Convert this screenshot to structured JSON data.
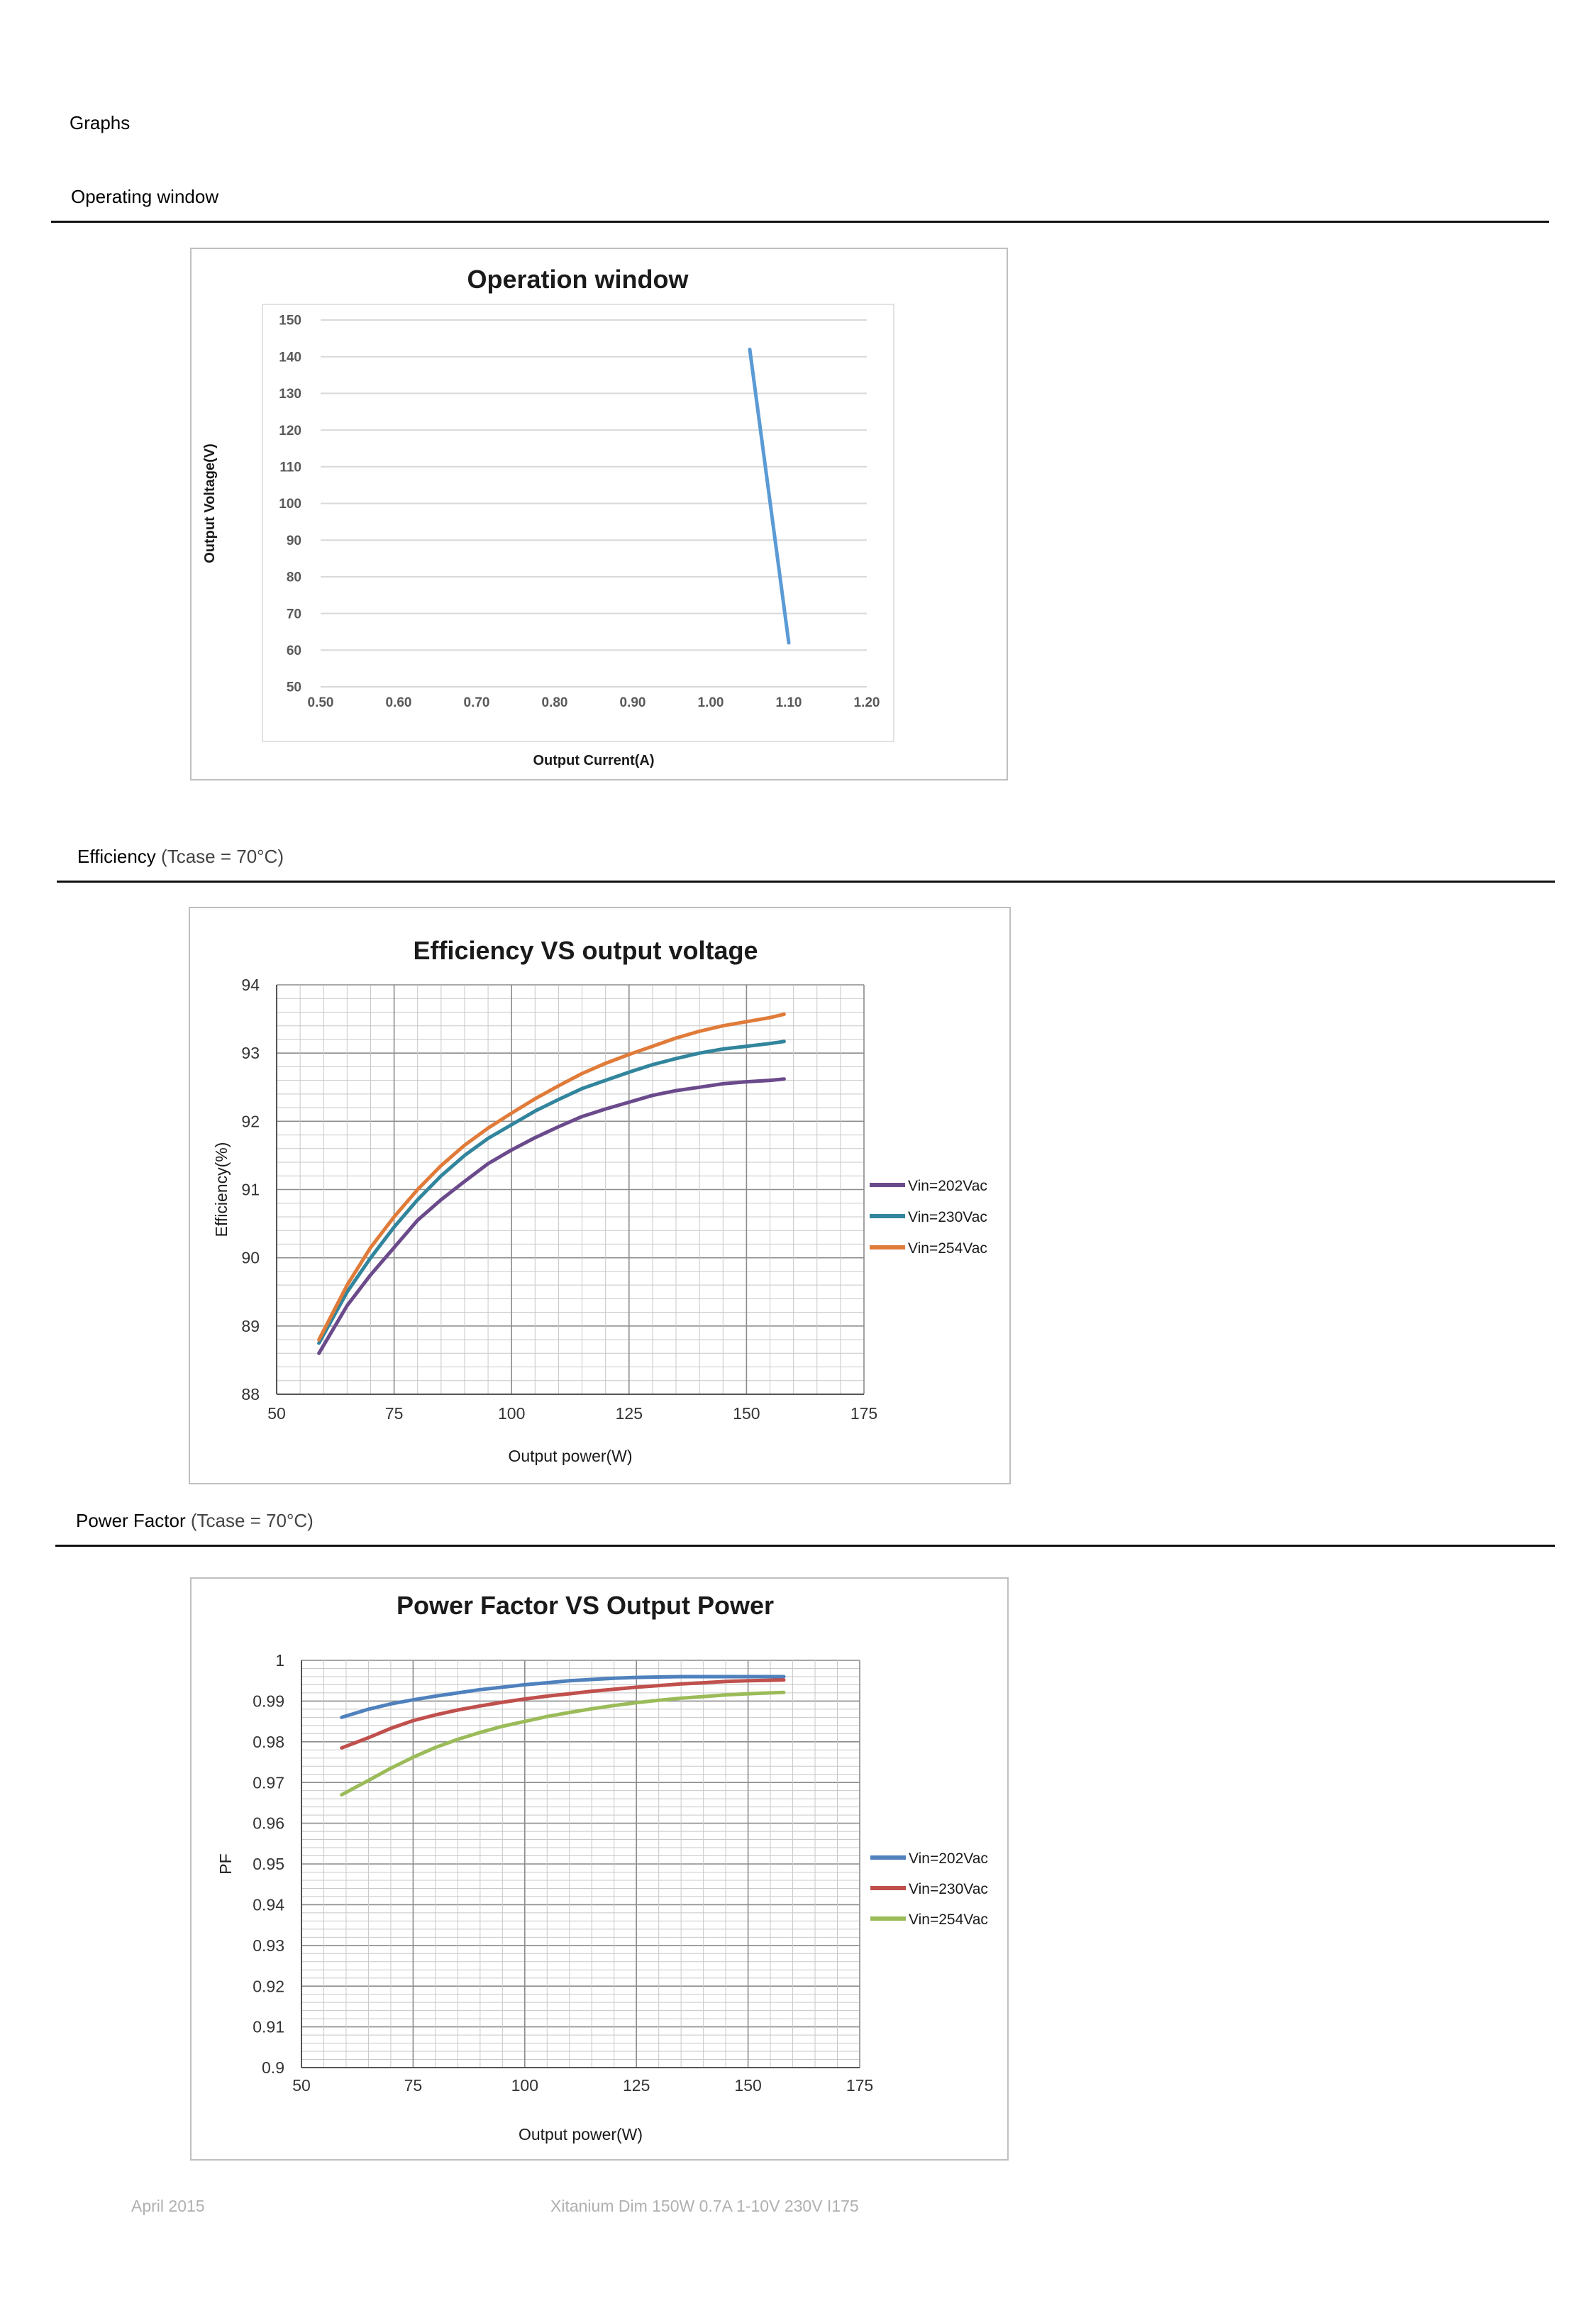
{
  "page": {
    "heading": "Graphs",
    "footer_date": "April 2015",
    "footer_product": "Xitanium Dim 150W 0.7A 1-10V 230V I175"
  },
  "sections": [
    {
      "title": "Operating window",
      "note": ""
    },
    {
      "title": "Efficiency",
      "note": "(Tcase = 70°C)"
    },
    {
      "title": "Power Factor",
      "note": "(Tcase = 70°C)"
    }
  ],
  "chart_data": [
    {
      "type": "line",
      "title": "Operation window",
      "xlabel": "Output Current(A)",
      "ylabel": "Output Voltage(V)",
      "xlim": [
        0.5,
        1.2
      ],
      "ylim": [
        50,
        150
      ],
      "x_ticks": [
        "0.50",
        "0.60",
        "0.70",
        "0.80",
        "0.90",
        "1.00",
        "1.10",
        "1.20"
      ],
      "y_ticks": [
        "50",
        "60",
        "70",
        "80",
        "90",
        "100",
        "110",
        "120",
        "130",
        "140",
        "150"
      ],
      "grid": "horizontal",
      "legend": "none",
      "series": [
        {
          "color": "#5b9bd5",
          "x": [
            1.05,
            1.1
          ],
          "y": [
            142,
            62
          ]
        }
      ]
    },
    {
      "type": "line",
      "title": "Efficiency VS output voltage",
      "xlabel": "Output power(W)",
      "ylabel": "Efficiency(%)",
      "xlim": [
        50,
        175
      ],
      "ylim": [
        88,
        94
      ],
      "x_ticks": [
        "50",
        "75",
        "100",
        "125",
        "150",
        "175"
      ],
      "y_ticks": [
        "88",
        "89",
        "90",
        "91",
        "92",
        "93",
        "94"
      ],
      "grid": "major and minor",
      "legend": "right",
      "x": [
        59,
        65,
        70,
        75,
        80,
        85,
        90,
        95,
        100,
        105,
        110,
        115,
        120,
        125,
        130,
        135,
        140,
        145,
        150,
        155,
        158
      ],
      "series": [
        {
          "name": "Vin=202Vac",
          "color": "#6b4a8c",
          "values": [
            88.6,
            89.3,
            89.75,
            90.15,
            90.55,
            90.85,
            91.12,
            91.38,
            91.58,
            91.76,
            91.92,
            92.07,
            92.18,
            92.28,
            92.38,
            92.45,
            92.5,
            92.55,
            92.58,
            92.6,
            92.62
          ]
        },
        {
          "name": "Vin=230Vac",
          "color": "#31859c",
          "values": [
            88.75,
            89.5,
            90.0,
            90.45,
            90.85,
            91.2,
            91.5,
            91.75,
            91.95,
            92.15,
            92.32,
            92.48,
            92.6,
            92.72,
            92.83,
            92.92,
            93.0,
            93.06,
            93.1,
            93.14,
            93.17
          ]
        },
        {
          "name": "Vin=254Vac",
          "color": "#e07b39",
          "values": [
            88.8,
            89.6,
            90.15,
            90.6,
            91.0,
            91.35,
            91.65,
            91.9,
            92.12,
            92.33,
            92.52,
            92.7,
            92.85,
            92.98,
            93.1,
            93.22,
            93.32,
            93.4,
            93.46,
            93.52,
            93.57
          ]
        }
      ]
    },
    {
      "type": "line",
      "title": "Power Factor VS Output Power",
      "xlabel": "Output power(W)",
      "ylabel": "PF",
      "xlim": [
        50,
        175
      ],
      "ylim": [
        0.9,
        1
      ],
      "x_ticks": [
        "50",
        "75",
        "100",
        "125",
        "150",
        "175"
      ],
      "y_ticks": [
        "0.9",
        "0.91",
        "0.92",
        "0.93",
        "0.94",
        "0.95",
        "0.96",
        "0.97",
        "0.98",
        "0.99",
        "1"
      ],
      "grid": "major and minor",
      "legend": "right",
      "x": [
        59,
        65,
        70,
        75,
        80,
        85,
        90,
        95,
        100,
        105,
        110,
        115,
        120,
        125,
        130,
        135,
        140,
        145,
        150,
        155,
        158
      ],
      "series": [
        {
          "name": "Vin=202Vac",
          "color": "#4f81bd",
          "values": [
            0.986,
            0.988,
            0.9893,
            0.9903,
            0.9912,
            0.992,
            0.9928,
            0.9934,
            0.994,
            0.9945,
            0.995,
            0.9953,
            0.9956,
            0.9958,
            0.9959,
            0.996,
            0.996,
            0.996,
            0.996,
            0.996,
            0.996
          ]
        },
        {
          "name": "Vin=230Vac",
          "color": "#c0504d",
          "values": [
            0.9785,
            0.981,
            0.9833,
            0.9852,
            0.9866,
            0.9878,
            0.9888,
            0.9897,
            0.9905,
            0.9912,
            0.9918,
            0.9924,
            0.9929,
            0.9934,
            0.9938,
            0.9942,
            0.9945,
            0.9948,
            0.995,
            0.9951,
            0.9952
          ]
        },
        {
          "name": "Vin=254Vac",
          "color": "#9bbb59",
          "values": [
            0.967,
            0.9705,
            0.9735,
            0.9762,
            0.9786,
            0.9806,
            0.9823,
            0.9838,
            0.985,
            0.9862,
            0.9872,
            0.9881,
            0.9889,
            0.9896,
            0.9902,
            0.9907,
            0.9911,
            0.9915,
            0.9918,
            0.992,
            0.9921
          ]
        }
      ]
    }
  ]
}
